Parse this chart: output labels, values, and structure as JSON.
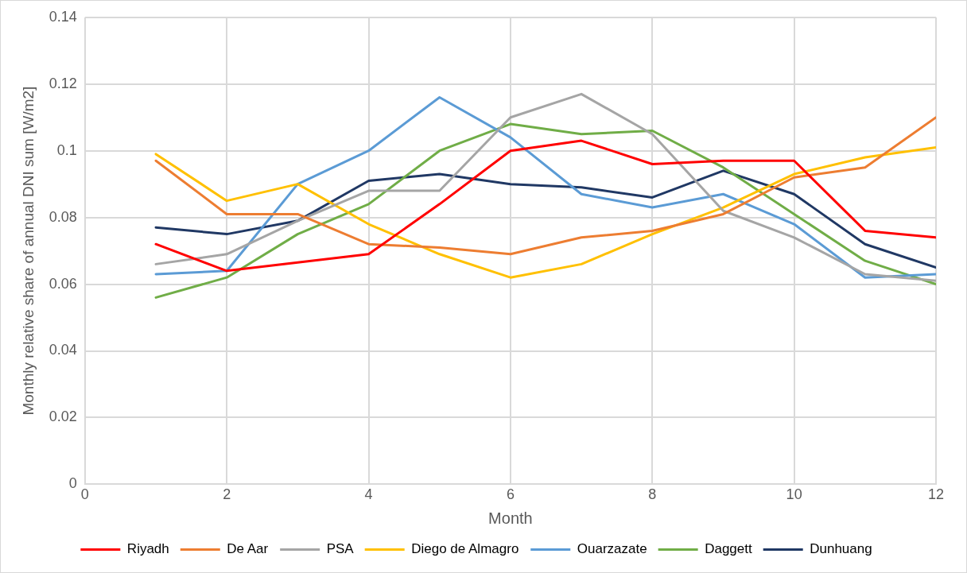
{
  "chart_data": {
    "type": "line",
    "xlabel": "Month",
    "ylabel": "Monthly relative share of annual DNI sum [W/m2]",
    "x": [
      1,
      2,
      3,
      4,
      5,
      6,
      7,
      8,
      9,
      10,
      11,
      12
    ],
    "xlim": [
      0,
      12
    ],
    "xticks": [
      0,
      2,
      4,
      6,
      8,
      10,
      12
    ],
    "ylim": [
      0,
      0.14
    ],
    "yticks": [
      0,
      0.02,
      0.04,
      0.06,
      0.08,
      0.1,
      0.12,
      0.14
    ],
    "grid": true,
    "legend": "bottom",
    "marker": "none",
    "line_style": "solid",
    "series": [
      {
        "name": "Riyadh",
        "color": "#ff0000",
        "values": [
          0.072,
          0.064,
          0.0665,
          0.069,
          0.084,
          0.1,
          0.103,
          0.096,
          0.097,
          0.097,
          0.076,
          0.074
        ]
      },
      {
        "name": "De Aar",
        "color": "#ed7d31",
        "values": [
          0.097,
          0.081,
          0.081,
          0.072,
          0.071,
          0.069,
          0.074,
          0.076,
          0.081,
          0.092,
          0.095,
          0.11
        ]
      },
      {
        "name": "PSA",
        "color": "#a5a5a5",
        "values": [
          0.066,
          0.069,
          0.079,
          0.088,
          0.088,
          0.11,
          0.117,
          0.105,
          0.082,
          0.074,
          0.063,
          0.061
        ]
      },
      {
        "name": "Diego de Almagro",
        "color": "#ffc000",
        "values": [
          0.099,
          0.085,
          0.09,
          0.078,
          0.069,
          0.062,
          0.066,
          0.075,
          0.083,
          0.093,
          0.098,
          0.101
        ]
      },
      {
        "name": "Ouarzazate",
        "color": "#5b9bd5",
        "values": [
          0.063,
          0.064,
          0.09,
          0.1,
          0.116,
          0.104,
          0.087,
          0.083,
          0.087,
          0.078,
          0.062,
          0.063
        ]
      },
      {
        "name": "Daggett",
        "color": "#70ad47",
        "values": [
          0.056,
          0.062,
          0.075,
          0.084,
          0.1,
          0.108,
          0.105,
          0.106,
          0.095,
          0.081,
          0.067,
          0.06
        ]
      },
      {
        "name": "Dunhuang",
        "color": "#203864",
        "values": [
          0.077,
          0.075,
          0.079,
          0.091,
          0.093,
          0.09,
          0.089,
          0.086,
          0.094,
          0.087,
          0.072,
          0.065
        ]
      }
    ]
  }
}
